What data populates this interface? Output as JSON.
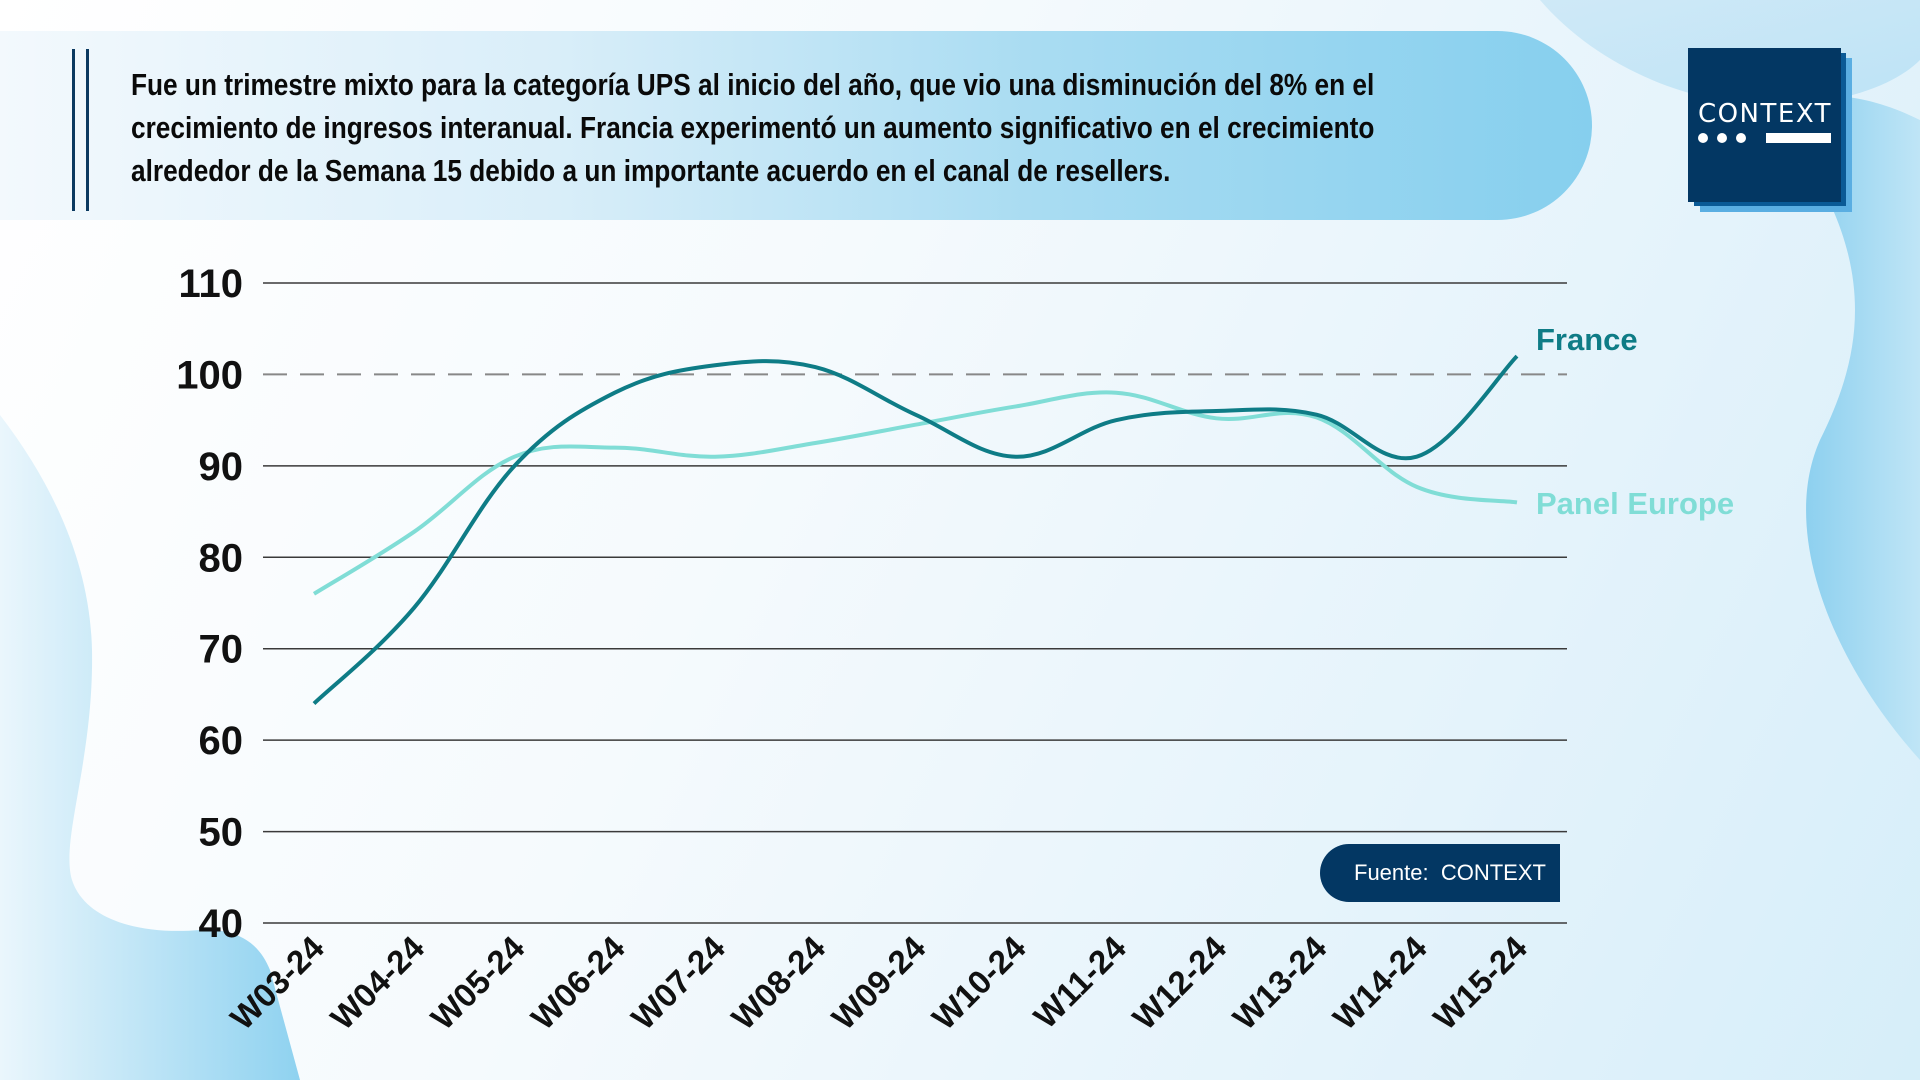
{
  "header": {
    "text": "Fue un trimestre mixto para la categoría UPS al inicio del año, que vio una disminución del 8% en el\ncrecimiento de ingresos interanual. Francia experimentó un aumento significativo en el crecimiento\nalrededor de la Semana 15 debido a un importante acuerdo en el canal de resellers."
  },
  "logo": {
    "word": "CONTEXT",
    "icon": "context-logo"
  },
  "source": {
    "label": "Fuente:  CONTEXT"
  },
  "colors": {
    "france": "#0e7c86",
    "panel_europe": "#80ddd6",
    "navy": "#033763",
    "grid": "#3a3a3a",
    "reference": "#888888"
  },
  "chart_data": {
    "type": "line",
    "title": "",
    "xlabel": "",
    "ylabel": "",
    "ylim": [
      40,
      110
    ],
    "yticks": [
      40,
      50,
      60,
      70,
      80,
      90,
      100,
      110
    ],
    "grid": true,
    "reference_line": {
      "value": 100,
      "style": "dashed"
    },
    "legend_placement": "right (inline labels at line ends)",
    "categories": [
      "W03-24",
      "W04-24",
      "W05-24",
      "W06-24",
      "W07-24",
      "W08-24",
      "W09-24",
      "W10-24",
      "W11-24",
      "W12-24",
      "W13-24",
      "W14-24",
      "W15-24"
    ],
    "series": [
      {
        "name": "France",
        "values": [
          64,
          74.5,
          90,
          98,
          101,
          100.8,
          95.6,
          91,
          95,
          96,
          95.6,
          91,
          102
        ]
      },
      {
        "name": "Panel Europe",
        "values": [
          76,
          82.8,
          91,
          92,
          91,
          92.5,
          94.5,
          96.5,
          98,
          95.2,
          95.3,
          87.7,
          86
        ]
      }
    ]
  }
}
